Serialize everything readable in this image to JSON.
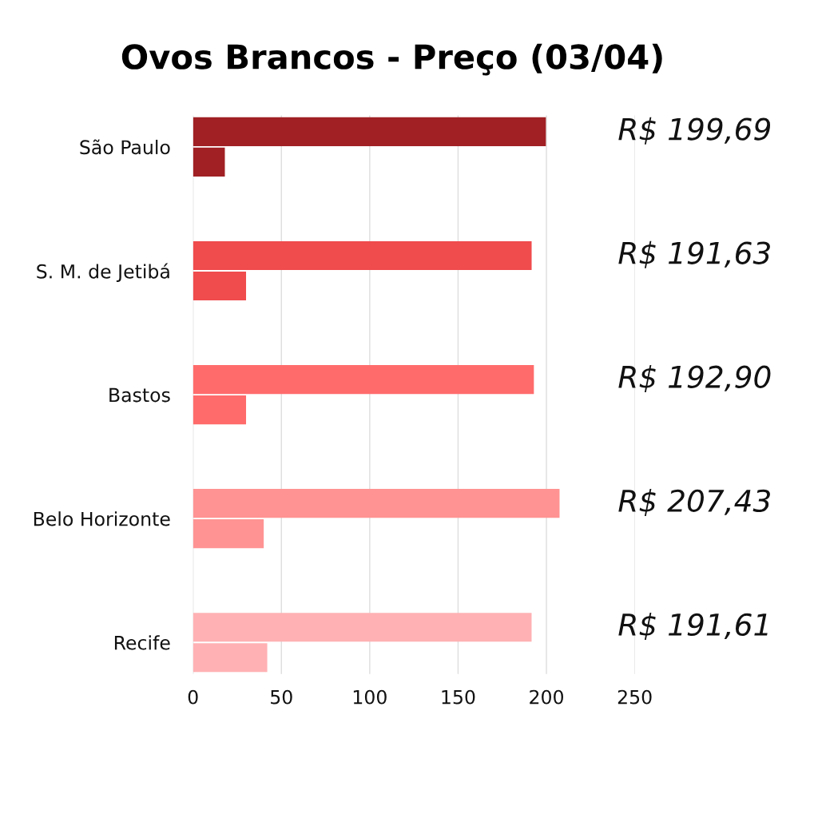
{
  "chart_data": {
    "type": "bar",
    "orientation": "horizontal",
    "title": "Ovos Brancos - Preço (03/04)",
    "categories": [
      "São Paulo",
      "S. M. de Jetibá",
      "Bastos",
      "Belo Horizonte",
      "Recife"
    ],
    "series": [
      {
        "colors": [
          "#a02024",
          "#f04b4d",
          "#ff6b6b",
          "#ff9393",
          "#ffb1b3"
        ],
        "values": [
          199.69,
          191.63,
          192.9,
          207.43,
          191.61
        ],
        "value_labels": [
          "R$ 199,69",
          "R$ 191,63",
          "R$ 192,90",
          "R$ 207,43",
          "R$ 191,61"
        ]
      },
      {
        "colors": [
          "#a02024",
          "#f04b4d",
          "#ff6b6b",
          "#ff9393",
          "#ffb1b3"
        ],
        "values": [
          18,
          30,
          30,
          40,
          42
        ]
      }
    ],
    "xlim": [
      0,
      250
    ],
    "xticks": [
      0,
      50,
      100,
      150,
      200,
      250
    ],
    "grid": "x"
  }
}
